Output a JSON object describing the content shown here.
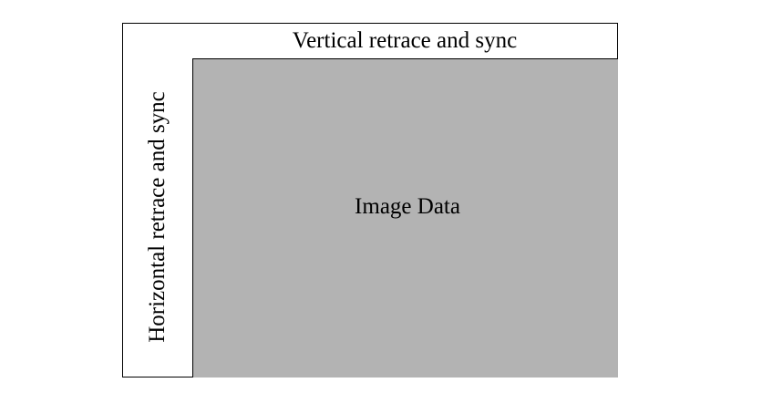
{
  "diagram": {
    "top_label": "Vertical retrace and sync",
    "side_label": "Horizontal retrace and sync",
    "center_label": "Image Data",
    "colors": {
      "image_fill": "#b3b3b3",
      "border": "#000000",
      "background": "#ffffff"
    }
  }
}
